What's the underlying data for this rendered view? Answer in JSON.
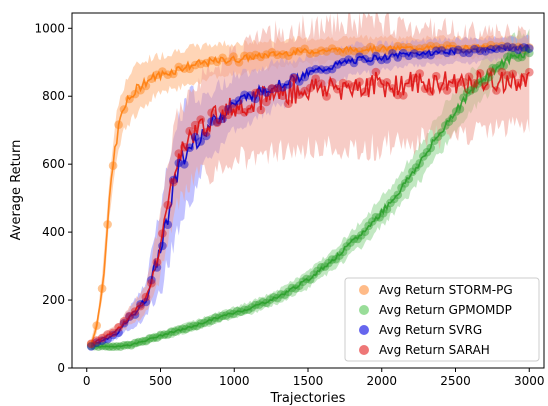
{
  "chart_data": {
    "type": "line",
    "title": "",
    "xlabel": "Trajectories",
    "ylabel": "Average Return",
    "xlim": [
      -100,
      3100
    ],
    "ylim": [
      0,
      1045
    ],
    "xticks": [
      0,
      500,
      1000,
      1500,
      2000,
      2500,
      3000
    ],
    "yticks": [
      0,
      200,
      400,
      600,
      800,
      1000
    ],
    "grid": false,
    "legend_position": "bottom-right",
    "series": [
      {
        "name": "Avg Return STORM-PG",
        "color": "#ff7f0e",
        "legend_color": "#ffbb88",
        "band_color": "#ffb27a",
        "x": [
          30,
          70,
          110,
          150,
          190,
          230,
          270,
          320,
          380,
          450,
          550,
          650,
          750,
          900,
          1050,
          1200,
          1400,
          1600,
          1800,
          2000,
          2200,
          2400,
          2600,
          2800,
          3000
        ],
        "y": [
          70,
          130,
          250,
          480,
          640,
          740,
          780,
          810,
          840,
          855,
          870,
          885,
          895,
          905,
          910,
          920,
          930,
          935,
          938,
          940,
          942,
          943,
          944,
          945,
          946
        ],
        "band": [
          15,
          20,
          40,
          60,
          70,
          70,
          70,
          70,
          65,
          60,
          55,
          55,
          50,
          50,
          45,
          40,
          40,
          35,
          35,
          35,
          30,
          30,
          30,
          30,
          30
        ]
      },
      {
        "name": "Avg Return GPMOMDP",
        "color": "#2ca02c",
        "legend_color": "#99dd99",
        "band_color": "#8fd58f",
        "x": [
          30,
          150,
          300,
          500,
          700,
          900,
          1100,
          1300,
          1500,
          1700,
          1900,
          2100,
          2300,
          2500,
          2700,
          2900,
          3000
        ],
        "y": [
          65,
          62,
          68,
          95,
          120,
          150,
          175,
          210,
          260,
          330,
          410,
          510,
          630,
          760,
          860,
          920,
          930
        ],
        "band": [
          8,
          8,
          10,
          12,
          15,
          15,
          18,
          20,
          25,
          30,
          40,
          45,
          55,
          60,
          60,
          60,
          60
        ]
      },
      {
        "name": "Avg Return SVRG",
        "color": "#0000cc",
        "legend_color": "#6666ee",
        "band_color": "#8f8fff",
        "x": [
          30,
          200,
          400,
          500,
          600,
          700,
          800,
          1000,
          1200,
          1400,
          1600,
          1800,
          2000,
          2200,
          2400,
          2600,
          2800,
          3000
        ],
        "y": [
          65,
          100,
          200,
          350,
          560,
          650,
          700,
          780,
          820,
          850,
          880,
          905,
          915,
          925,
          930,
          935,
          940,
          945
        ],
        "band": [
          10,
          15,
          50,
          120,
          170,
          150,
          100,
          80,
          70,
          60,
          50,
          45,
          40,
          35,
          35,
          35,
          30,
          30
        ]
      },
      {
        "name": "Avg Return SARAH",
        "color": "#dd1111",
        "legend_color": "#ee7777",
        "band_color": "#f0a398",
        "x": [
          30,
          200,
          400,
          500,
          600,
          700,
          800,
          1000,
          1200,
          1400,
          1600,
          1800,
          2000,
          2200,
          2400,
          2600,
          2800,
          3000
        ],
        "y": [
          70,
          110,
          200,
          360,
          600,
          680,
          720,
          770,
          800,
          815,
          825,
          830,
          835,
          835,
          838,
          840,
          842,
          845
        ],
        "band": [
          10,
          15,
          40,
          90,
          130,
          130,
          150,
          160,
          170,
          180,
          180,
          180,
          180,
          170,
          160,
          150,
          140,
          130
        ]
      }
    ]
  }
}
